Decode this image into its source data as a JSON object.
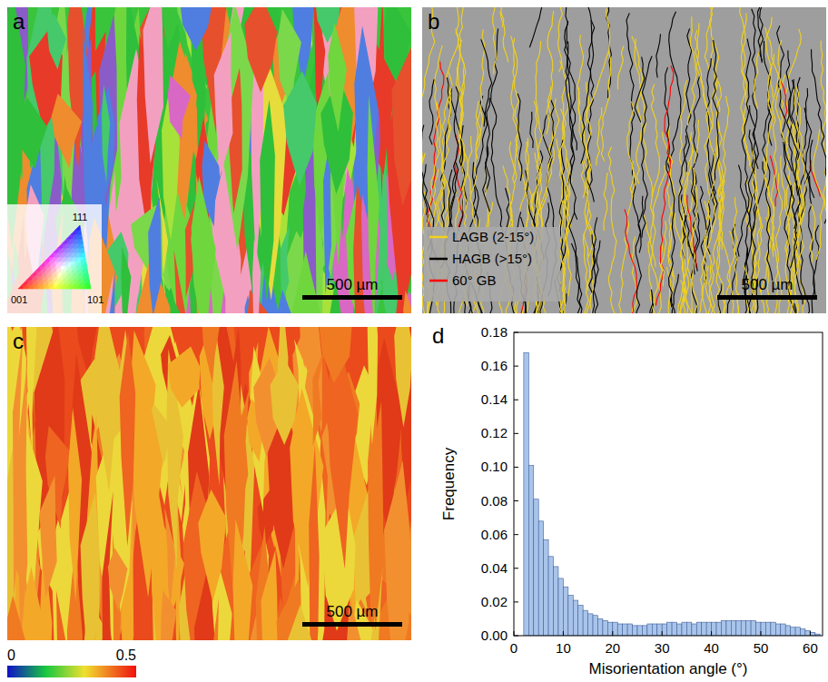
{
  "chart_data": [
    {
      "type": "map",
      "panel": "a",
      "scale_bar": "500 µm",
      "ipf_key": {
        "labels": [
          "001",
          "101",
          "111"
        ]
      }
    },
    {
      "type": "map",
      "panel": "b",
      "scale_bar": "500 µm",
      "legend": "lower left",
      "series": [
        {
          "name": "LAGB (2-15°)",
          "color": "#f2d21a"
        },
        {
          "name": "HAGB (>15°)",
          "color": "#000000"
        },
        {
          "name": "60° GB",
          "color": "#ff0000"
        }
      ]
    },
    {
      "type": "map",
      "panel": "c",
      "scale_bar": "500 µm",
      "colorbar": {
        "range": [
          0,
          0.5
        ],
        "ticks": [
          0,
          0.5
        ]
      }
    },
    {
      "type": "histogram",
      "panel": "d",
      "x_label": "Misorientation angle (°)",
      "y_label": "Frequency",
      "color": "#a9c4ea",
      "bins": [
        2,
        3,
        4,
        5,
        6,
        7,
        8,
        9,
        10,
        11,
        12,
        13,
        14,
        15,
        16,
        17,
        18,
        19,
        20,
        21,
        22,
        23,
        24,
        25,
        26,
        27,
        28,
        29,
        30,
        31,
        32,
        33,
        34,
        35,
        36,
        37,
        38,
        39,
        40,
        41,
        42,
        43,
        44,
        45,
        46,
        47,
        48,
        49,
        50,
        51,
        52,
        53,
        54,
        55,
        56,
        57,
        58,
        59,
        60,
        61,
        62
      ],
      "values": [
        0.168,
        0.101,
        0.081,
        0.068,
        0.057,
        0.047,
        0.041,
        0.034,
        0.029,
        0.024,
        0.021,
        0.018,
        0.015,
        0.013,
        0.012,
        0.01,
        0.009,
        0.008,
        0.008,
        0.007,
        0.007,
        0.007,
        0.006,
        0.006,
        0.006,
        0.007,
        0.007,
        0.007,
        0.007,
        0.008,
        0.008,
        0.007,
        0.008,
        0.008,
        0.007,
        0.008,
        0.008,
        0.008,
        0.008,
        0.008,
        0.009,
        0.009,
        0.009,
        0.009,
        0.009,
        0.009,
        0.009,
        0.008,
        0.008,
        0.008,
        0.008,
        0.007,
        0.007,
        0.006,
        0.005,
        0.005,
        0.004,
        0.003,
        0.002,
        0.001
      ],
      "xlim": [
        0,
        62.5
      ],
      "ylim": [
        0,
        0.18
      ],
      "xticks": [
        0,
        10,
        20,
        30,
        40,
        50,
        60
      ],
      "yticks": [
        {
          "value": 0,
          "label": "0.00"
        },
        {
          "value": 0.02,
          "label": "0.02"
        },
        {
          "value": 0.04,
          "label": "0.04"
        },
        {
          "value": 0.06,
          "label": "0.06"
        },
        {
          "value": 0.08,
          "label": "0.08"
        },
        {
          "value": 0.1,
          "label": "0.10"
        },
        {
          "value": 0.12,
          "label": "0.12"
        },
        {
          "value": 0.14,
          "label": "0.14"
        },
        {
          "value": 0.16,
          "label": "0.16"
        },
        {
          "value": 0.18,
          "label": "0.18"
        }
      ],
      "grid": false
    }
  ]
}
